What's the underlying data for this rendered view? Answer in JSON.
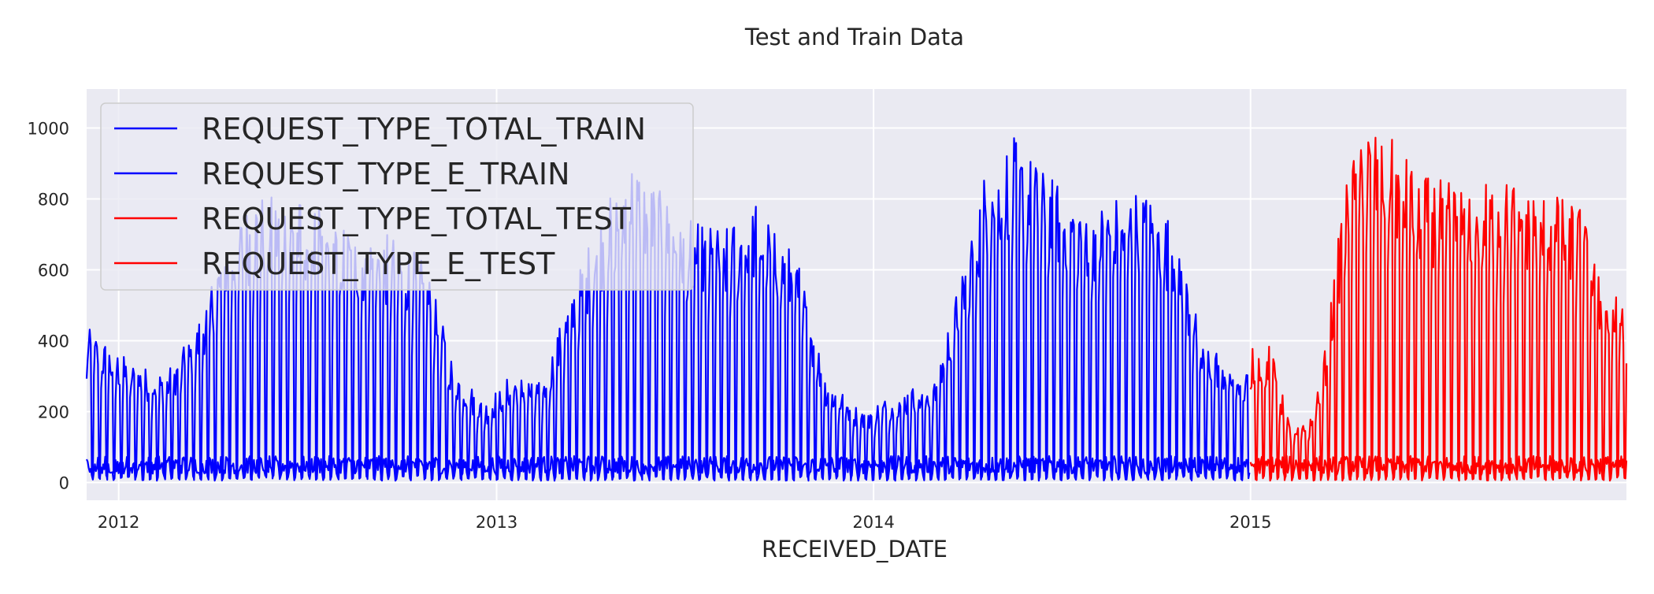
{
  "chart_data": {
    "type": "line",
    "title": "Test and Train Data",
    "xlabel": "RECEIVED_DATE",
    "ylabel": "",
    "x_range": [
      "2011-12-01",
      "2015-12-31"
    ],
    "ylim": [
      -50,
      1110
    ],
    "x_ticks": [
      {
        "date": "2012-01-01",
        "label": "2012"
      },
      {
        "date": "2013-01-01",
        "label": "2013"
      },
      {
        "date": "2014-01-01",
        "label": "2014"
      },
      {
        "date": "2015-01-01",
        "label": "2015"
      }
    ],
    "y_ticks": [
      0,
      200,
      400,
      600,
      800,
      1000
    ],
    "grid": true,
    "legend_position": "top-left",
    "series": [
      {
        "name": "REQUEST_TYPE_TOTAL_TRAIN",
        "color": "#0000ff",
        "kind": "weekly peaks",
        "start": "2011-12-01",
        "end": "2014-12-31",
        "envelope": [
          [
            "2011-12-01",
            430
          ],
          [
            "2012-01-15",
            330
          ],
          [
            "2012-02-15",
            300
          ],
          [
            "2012-03-15",
            420
          ],
          [
            "2012-04-15",
            700
          ],
          [
            "2012-05-15",
            800
          ],
          [
            "2012-07-01",
            780
          ],
          [
            "2012-08-15",
            700
          ],
          [
            "2012-10-01",
            680
          ],
          [
            "2012-10-25",
            600
          ],
          [
            "2012-11-20",
            330
          ],
          [
            "2012-12-20",
            220
          ],
          [
            "2013-01-15",
            300
          ],
          [
            "2013-02-15",
            280
          ],
          [
            "2013-03-05",
            450
          ],
          [
            "2013-04-05",
            700
          ],
          [
            "2013-05-10",
            900
          ],
          [
            "2013-06-10",
            800
          ],
          [
            "2013-07-10",
            720
          ],
          [
            "2013-08-10",
            700
          ],
          [
            "2013-09-10",
            780
          ],
          [
            "2013-10-20",
            620
          ],
          [
            "2013-11-15",
            300
          ],
          [
            "2013-12-20",
            200
          ],
          [
            "2014-02-01",
            260
          ],
          [
            "2014-03-01",
            280
          ],
          [
            "2014-03-25",
            560
          ],
          [
            "2014-04-20",
            880
          ],
          [
            "2014-05-15",
            960
          ],
          [
            "2014-06-15",
            860
          ],
          [
            "2014-07-15",
            800
          ],
          [
            "2014-08-15",
            780
          ],
          [
            "2014-09-15",
            820
          ],
          [
            "2014-10-20",
            720
          ],
          [
            "2014-11-15",
            400
          ],
          [
            "2014-12-31",
            300
          ]
        ]
      },
      {
        "name": "REQUEST_TYPE_E_TRAIN",
        "color": "#0000ff",
        "kind": "low band",
        "start": "2011-12-01",
        "end": "2014-12-31",
        "typical_range": [
          5,
          75
        ]
      },
      {
        "name": "REQUEST_TYPE_TOTAL_TEST",
        "color": "#ff0000",
        "kind": "weekly peaks",
        "start": "2015-01-01",
        "end": "2015-12-31",
        "envelope": [
          [
            "2015-01-01",
            370
          ],
          [
            "2015-01-20",
            380
          ],
          [
            "2015-02-10",
            140
          ],
          [
            "2015-03-01",
            180
          ],
          [
            "2015-03-15",
            380
          ],
          [
            "2015-04-01",
            800
          ],
          [
            "2015-04-20",
            1000
          ],
          [
            "2015-05-15",
            960
          ],
          [
            "2015-06-15",
            850
          ],
          [
            "2015-07-15",
            830
          ],
          [
            "2015-08-15",
            830
          ],
          [
            "2015-09-15",
            840
          ],
          [
            "2015-10-15",
            800
          ],
          [
            "2015-11-15",
            780
          ],
          [
            "2015-12-10",
            520
          ],
          [
            "2015-12-31",
            540
          ]
        ]
      },
      {
        "name": "REQUEST_TYPE_E_TEST",
        "color": "#ff0000",
        "kind": "low band",
        "start": "2015-01-01",
        "end": "2015-12-31",
        "typical_range": [
          5,
          75
        ]
      }
    ]
  }
}
